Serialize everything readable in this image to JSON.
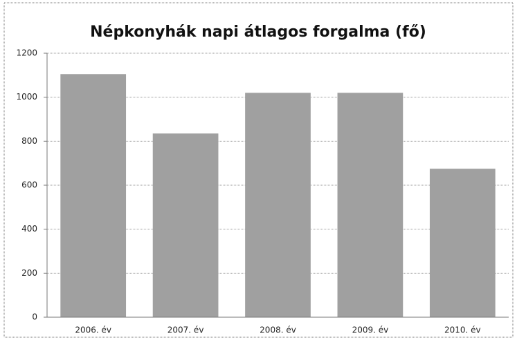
{
  "chart_data": {
    "type": "bar",
    "title": "Népkonyhák napi átlagos forgalma (fő)",
    "categories": [
      "2006. év",
      "2007. év",
      "2008. év",
      "2009. év",
      "2010. év"
    ],
    "values": [
      1105,
      835,
      1020,
      1020,
      675
    ],
    "color": "#a0a0a0",
    "ylim": [
      0,
      1200
    ],
    "yticks": [
      0,
      200,
      400,
      600,
      800,
      1000,
      1200
    ],
    "grid": true
  }
}
